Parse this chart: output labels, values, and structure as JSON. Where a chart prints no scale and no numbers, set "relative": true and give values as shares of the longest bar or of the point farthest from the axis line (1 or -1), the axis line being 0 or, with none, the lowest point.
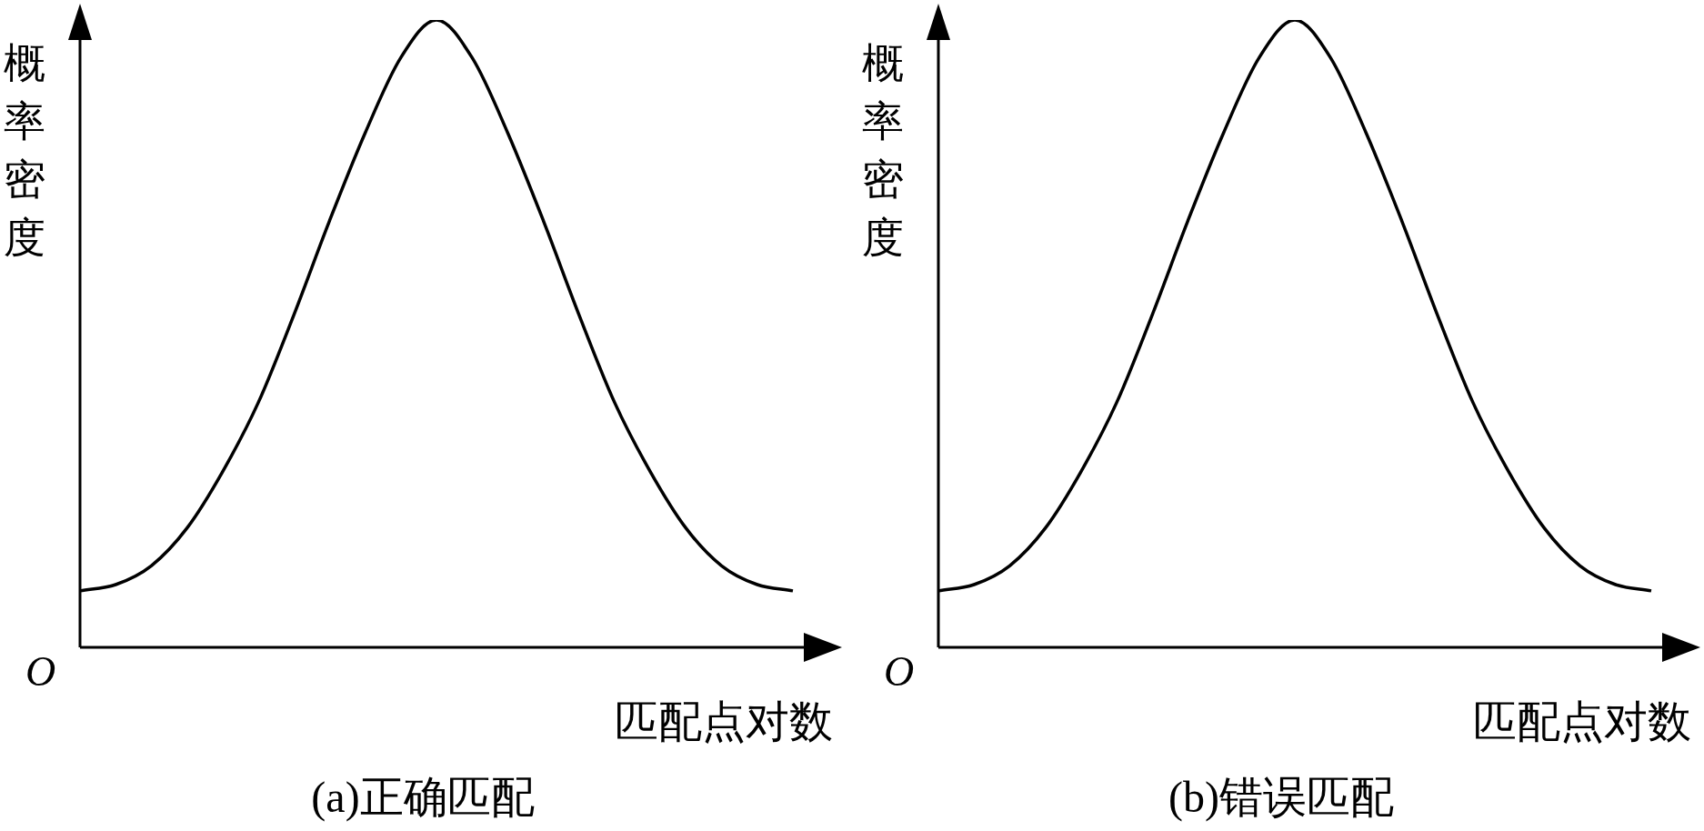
{
  "chart_data": [
    {
      "type": "line",
      "title": "(a)正确匹配",
      "xlabel": "匹配点对数",
      "ylabel": "概率密度",
      "annotations": [
        "O"
      ],
      "relative": true,
      "categories": [
        null,
        null,
        null,
        null,
        null,
        null,
        null,
        null,
        null,
        null,
        null,
        null,
        null,
        null,
        null,
        null,
        null,
        null,
        null,
        null,
        null
      ],
      "series": [
        {
          "color": "#000000",
          "values": [
            0.09,
            0.1,
            0.13,
            0.19,
            0.28,
            0.39,
            0.53,
            0.68,
            0.82,
            0.94,
            1,
            0.94,
            0.82,
            0.68,
            0.53,
            0.39,
            0.28,
            0.19,
            0.13,
            0.1,
            0.09
          ]
        }
      ]
    },
    {
      "type": "line",
      "title": "(b)错误匹配",
      "xlabel": "匹配点对数",
      "ylabel": "概率密度",
      "annotations": [
        "O"
      ],
      "relative": true,
      "categories": [
        null,
        null,
        null,
        null,
        null,
        null,
        null,
        null,
        null,
        null,
        null,
        null,
        null,
        null,
        null,
        null,
        null,
        null,
        null,
        null,
        null
      ],
      "series": [
        {
          "color": "#000000",
          "values": [
            0.09,
            0.1,
            0.13,
            0.19,
            0.28,
            0.39,
            0.53,
            0.68,
            0.82,
            0.94,
            1,
            0.94,
            0.82,
            0.68,
            0.53,
            0.39,
            0.28,
            0.19,
            0.13,
            0.1,
            0.09
          ]
        }
      ]
    }
  ]
}
